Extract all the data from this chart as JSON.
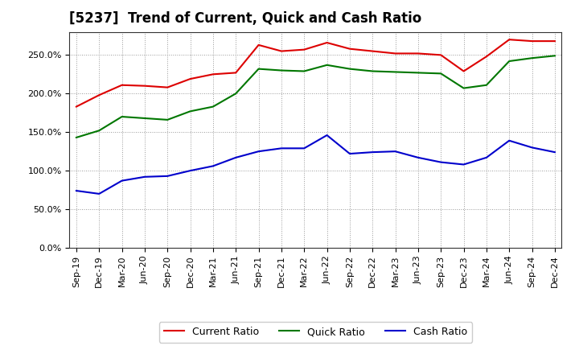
{
  "title": "[5237]  Trend of Current, Quick and Cash Ratio",
  "x_labels": [
    "Sep-19",
    "Dec-19",
    "Mar-20",
    "Jun-20",
    "Sep-20",
    "Dec-20",
    "Mar-21",
    "Jun-21",
    "Sep-21",
    "Dec-21",
    "Mar-22",
    "Jun-22",
    "Sep-22",
    "Dec-22",
    "Mar-23",
    "Jun-23",
    "Sep-23",
    "Dec-23",
    "Mar-24",
    "Jun-24",
    "Sep-24",
    "Dec-24"
  ],
  "current_ratio": [
    183,
    198,
    211,
    210,
    208,
    219,
    225,
    227,
    263,
    255,
    257,
    266,
    258,
    255,
    252,
    252,
    250,
    229,
    248,
    270,
    268,
    268
  ],
  "quick_ratio": [
    143,
    152,
    170,
    168,
    166,
    177,
    183,
    200,
    232,
    230,
    229,
    237,
    232,
    229,
    228,
    227,
    226,
    207,
    211,
    242,
    246,
    249
  ],
  "cash_ratio": [
    74,
    70,
    87,
    92,
    93,
    100,
    106,
    117,
    125,
    129,
    129,
    146,
    122,
    124,
    125,
    117,
    111,
    108,
    117,
    139,
    130,
    124
  ],
  "ylim": [
    0,
    280
  ],
  "yticks": [
    0,
    50,
    100,
    150,
    200,
    250
  ],
  "current_color": "#dd0000",
  "quick_color": "#007700",
  "cash_color": "#0000cc",
  "bg_color": "#ffffff",
  "plot_bg_color": "#ffffff",
  "grid_color": "#999999",
  "title_fontsize": 12,
  "tick_fontsize": 8,
  "legend_labels": [
    "Current Ratio",
    "Quick Ratio",
    "Cash Ratio"
  ]
}
